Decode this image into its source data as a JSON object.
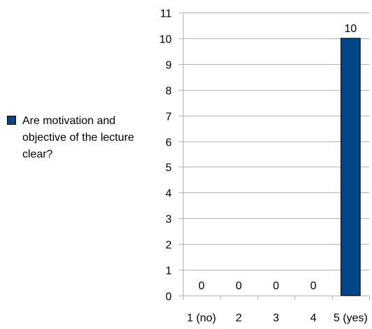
{
  "chart_data": {
    "type": "bar",
    "categories": [
      "1 (no)",
      "2",
      "3",
      "4",
      "5 (yes)"
    ],
    "series": [
      {
        "name": "Are motivation and objective of the lecture clear?",
        "values": [
          0,
          0,
          0,
          0,
          10
        ],
        "color": "#004586"
      }
    ],
    "ylim": [
      0,
      11
    ],
    "yticks": [
      0,
      1,
      2,
      3,
      4,
      5,
      6,
      7,
      8,
      9,
      10,
      11
    ],
    "grid": true,
    "legend_position": "left",
    "data_labels": true,
    "title": "",
    "xlabel": "",
    "ylabel": ""
  }
}
